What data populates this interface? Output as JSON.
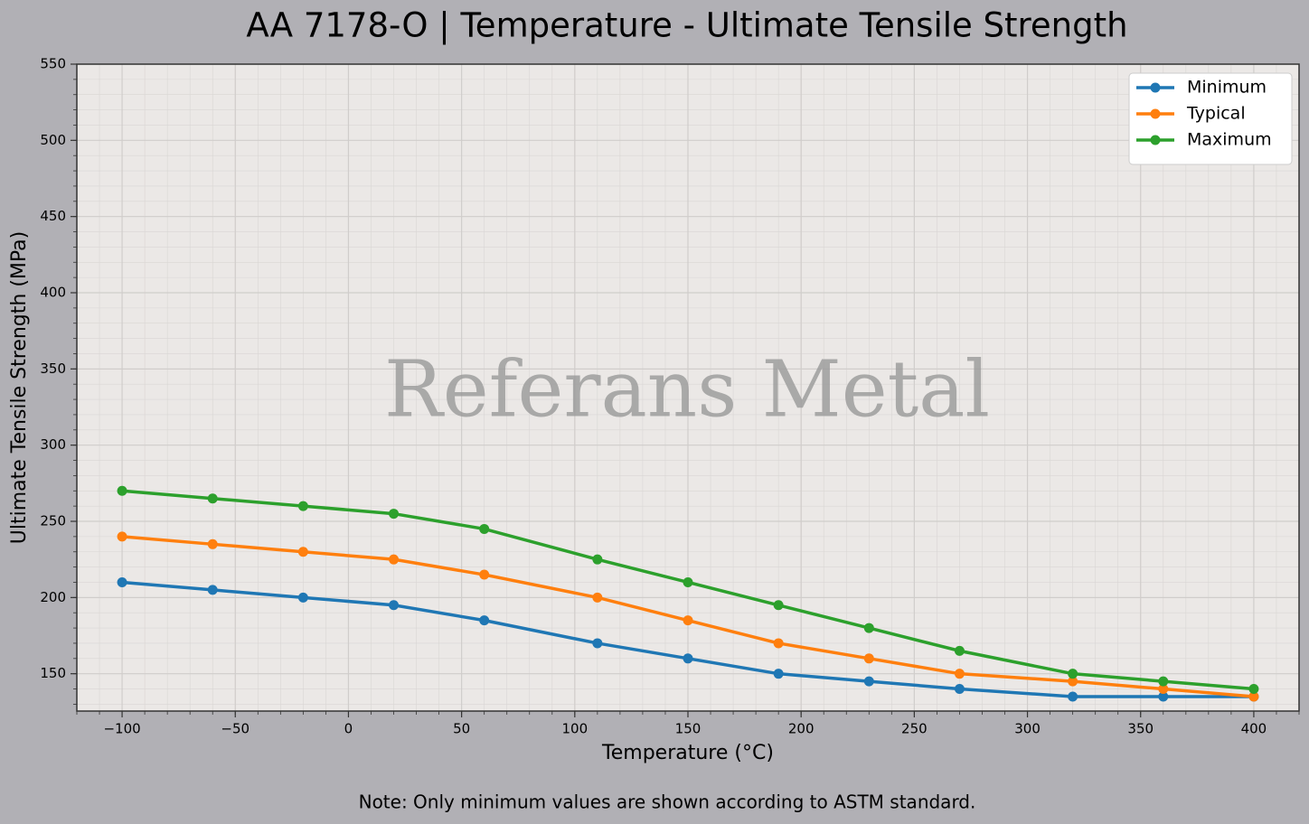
{
  "chart_data": {
    "type": "line",
    "title": "AA 7178-O | Temperature - Ultimate Tensile Strength",
    "xlabel": "Temperature (°C)",
    "ylabel": "Ultimate Tensile Strength (MPa)",
    "note": "Note: Only minimum values are shown according to ASTM standard.",
    "watermark": "Referans Metal",
    "x": [
      -100,
      -60,
      -20,
      20,
      60,
      110,
      150,
      190,
      230,
      270,
      320,
      360,
      400
    ],
    "series": [
      {
        "name": "Minimum",
        "color": "#1f77b4",
        "values": [
          210,
          205,
          200,
          195,
          185,
          170,
          160,
          150,
          145,
          140,
          135,
          135,
          135
        ]
      },
      {
        "name": "Typical",
        "color": "#ff7f0e",
        "values": [
          240,
          235,
          230,
          225,
          215,
          200,
          185,
          170,
          160,
          150,
          145,
          140,
          135
        ]
      },
      {
        "name": "Maximum",
        "color": "#2ca02c",
        "values": [
          270,
          265,
          260,
          255,
          245,
          225,
          210,
          195,
          180,
          165,
          150,
          145,
          140
        ]
      }
    ],
    "xlim": [
      -120,
      420
    ],
    "ylim": [
      125.5,
      550
    ],
    "xticks": [
      {
        "value": -100,
        "label": "−100"
      },
      {
        "value": -50,
        "label": "−50"
      },
      0,
      50,
      100,
      150,
      200,
      250,
      300,
      350,
      400
    ],
    "yticks": [
      150,
      200,
      250,
      300,
      350,
      400,
      450,
      500,
      550
    ],
    "grid": true,
    "legend": "upper right"
  }
}
